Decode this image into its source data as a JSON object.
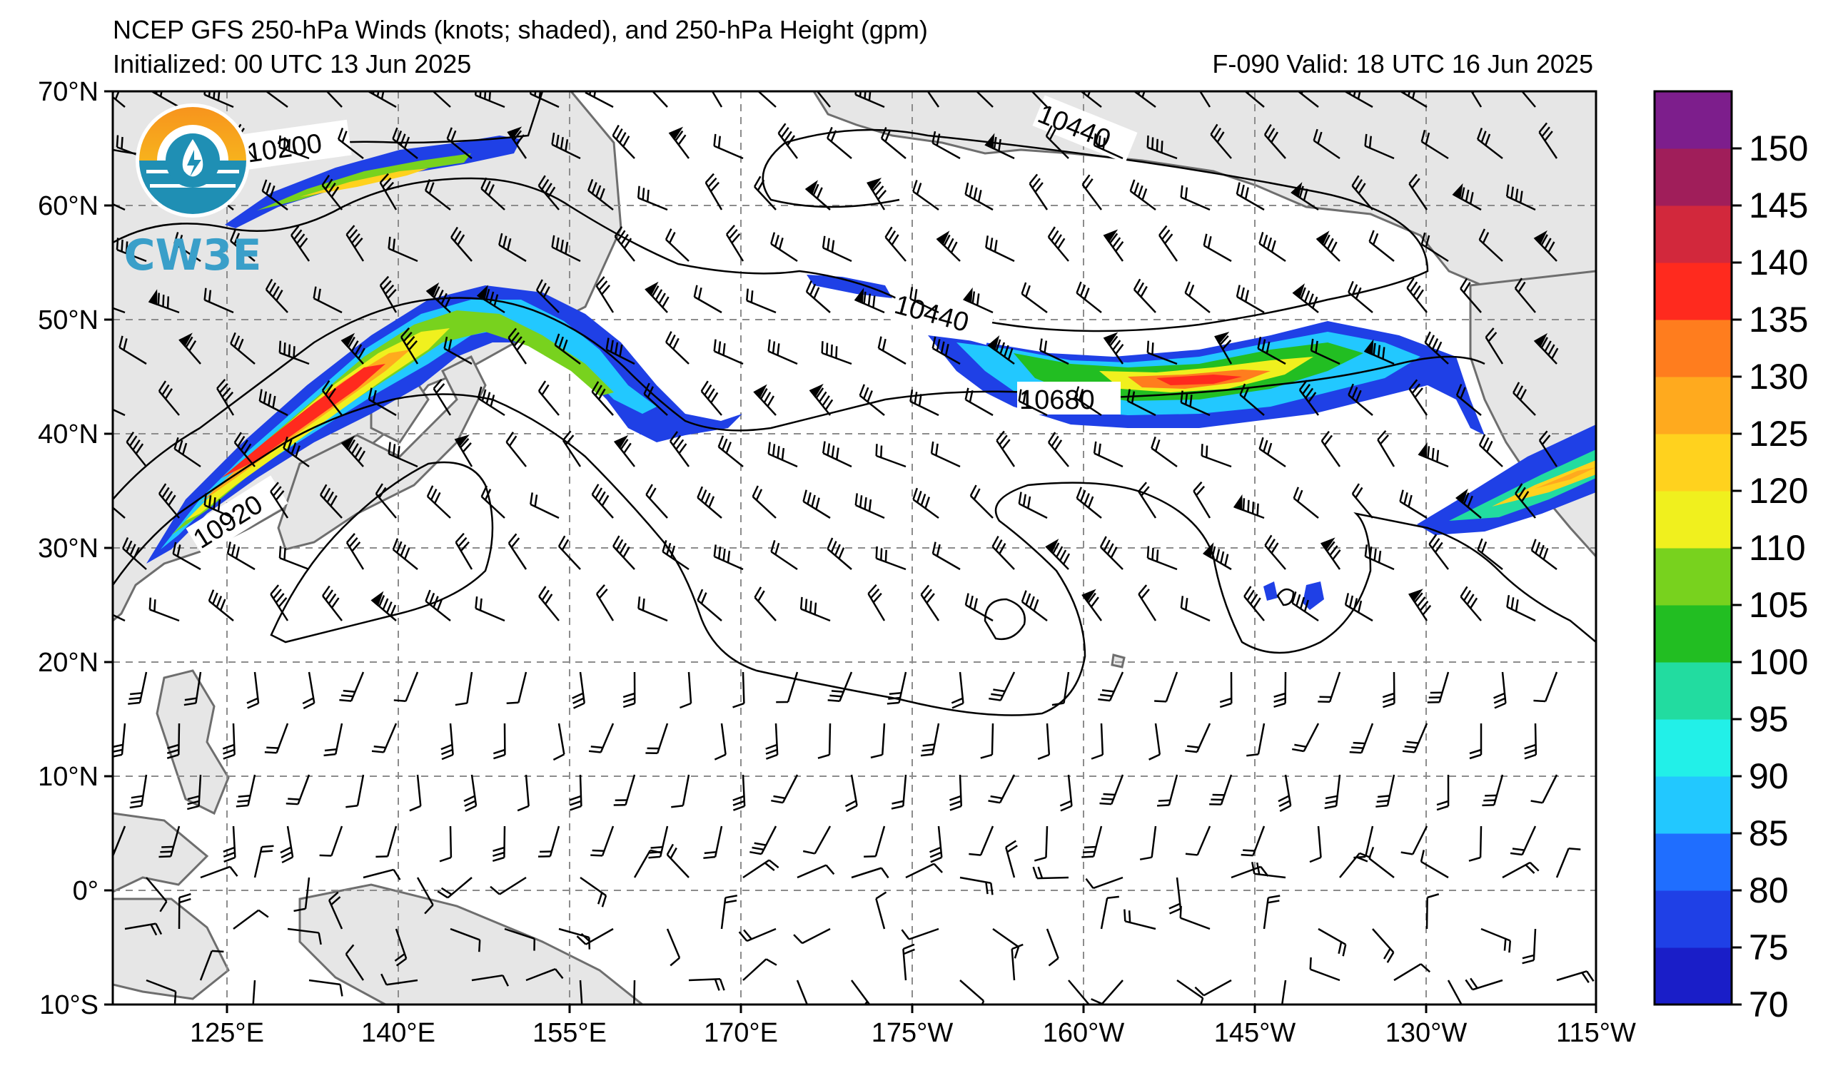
{
  "title": "NCEP GFS 250-hPa Winds (knots; shaded), and 250-hPa Height (gpm)",
  "initialized": "Initialized: 00 UTC 13 Jun 2025",
  "valid": "F-090  Valid: 18 UTC 16 Jun 2025",
  "logo_text": "CW3E",
  "lat_labels": [
    "70°N",
    "60°N",
    "50°N",
    "40°N",
    "30°N",
    "20°N",
    "10°N",
    "0°",
    "10°S"
  ],
  "lon_labels": [
    "125°E",
    "140°E",
    "155°E",
    "170°E",
    "175°W",
    "160°W",
    "145°W",
    "130°W",
    "115°W"
  ],
  "contour_labels": [
    {
      "id": "c10200",
      "text": "10200"
    },
    {
      "id": "c10440a",
      "text": "10440"
    },
    {
      "id": "c10440b",
      "text": "10440"
    },
    {
      "id": "c10680",
      "text": "10680"
    },
    {
      "id": "c10920",
      "text": "10920"
    }
  ],
  "colorbar": {
    "ticks": [
      "70",
      "75",
      "80",
      "85",
      "90",
      "95",
      "100",
      "105",
      "110",
      "120",
      "125",
      "130",
      "135",
      "140",
      "145",
      "150"
    ],
    "colors": [
      "#1a1ec8",
      "#1f40e6",
      "#1f6eff",
      "#22c8ff",
      "#22f0e8",
      "#22dca0",
      "#22be22",
      "#78d21e",
      "#f0f01e",
      "#ffd21e",
      "#ffaa1e",
      "#ff7d1e",
      "#ff2a1e",
      "#d2283c",
      "#a01e5a",
      "#7d1e8c"
    ]
  },
  "colors": {
    "land": "#e6e6e6",
    "coast": "#6e6e6e",
    "grid": "#8c8c8c",
    "contour": "#000000"
  }
}
